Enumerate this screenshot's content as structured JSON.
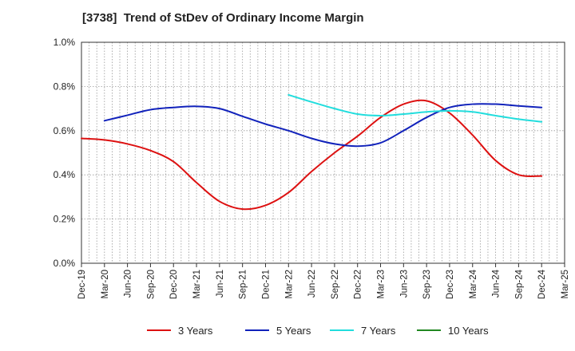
{
  "title": "[3738]  Trend of StDev of Ordinary Income Margin",
  "chart_data": {
    "type": "line",
    "title": "[3738]  Trend of StDev of Ordinary Income Margin",
    "xlabel": "",
    "ylabel": "",
    "ylim": [
      0,
      1.0
    ],
    "y_ticks": [
      "0.0%",
      "0.2%",
      "0.4%",
      "0.6%",
      "0.8%",
      "1.0%"
    ],
    "x_ticks": [
      "Dec-19",
      "Mar-20",
      "Jun-20",
      "Sep-20",
      "Dec-20",
      "Mar-21",
      "Jun-21",
      "Sep-21",
      "Dec-21",
      "Mar-22",
      "Jun-22",
      "Sep-22",
      "Dec-22",
      "Mar-23",
      "Jun-23",
      "Sep-23",
      "Dec-23",
      "Mar-24",
      "Jun-24",
      "Sep-24",
      "Dec-24",
      "Mar-25"
    ],
    "grid": true,
    "legend_position": "bottom",
    "series": [
      {
        "name": "3 Years",
        "color": "#dd1111",
        "x": [
          "Dec-19",
          "Mar-20",
          "Jun-20",
          "Sep-20",
          "Dec-20",
          "Mar-21",
          "Jun-21",
          "Sep-21",
          "Dec-21",
          "Mar-22",
          "Jun-22",
          "Sep-22",
          "Dec-22",
          "Mar-23",
          "Jun-23",
          "Sep-23",
          "Dec-23",
          "Mar-24",
          "Jun-24",
          "Sep-24",
          "Dec-24"
        ],
        "values": [
          0.565,
          0.558,
          0.54,
          0.51,
          0.46,
          0.365,
          0.28,
          0.245,
          0.262,
          0.32,
          0.415,
          0.5,
          0.575,
          0.66,
          0.72,
          0.735,
          0.68,
          0.58,
          0.465,
          0.4,
          0.395
        ]
      },
      {
        "name": "5 Years",
        "color": "#1122bb",
        "x": [
          "Mar-20",
          "Jun-20",
          "Sep-20",
          "Dec-20",
          "Mar-21",
          "Jun-21",
          "Sep-21",
          "Dec-21",
          "Mar-22",
          "Jun-22",
          "Sep-22",
          "Dec-22",
          "Mar-23",
          "Jun-23",
          "Sep-23",
          "Dec-23",
          "Mar-24",
          "Jun-24",
          "Sep-24",
          "Dec-24"
        ],
        "values": [
          0.645,
          0.67,
          0.695,
          0.705,
          0.71,
          0.7,
          0.665,
          0.63,
          0.6,
          0.565,
          0.54,
          0.53,
          0.545,
          0.6,
          0.66,
          0.705,
          0.72,
          0.72,
          0.712,
          0.705
        ]
      },
      {
        "name": "7 Years",
        "color": "#22dddd",
        "x": [
          "Mar-22",
          "Jun-22",
          "Sep-22",
          "Dec-22",
          "Mar-23",
          "Jun-23",
          "Sep-23",
          "Dec-23",
          "Mar-24",
          "Jun-24",
          "Sep-24",
          "Dec-24"
        ],
        "values": [
          0.762,
          0.73,
          0.7,
          0.675,
          0.668,
          0.675,
          0.685,
          0.69,
          0.685,
          0.668,
          0.652,
          0.64
        ]
      },
      {
        "name": "10 Years",
        "color": "#228822",
        "x": [],
        "values": []
      }
    ]
  }
}
